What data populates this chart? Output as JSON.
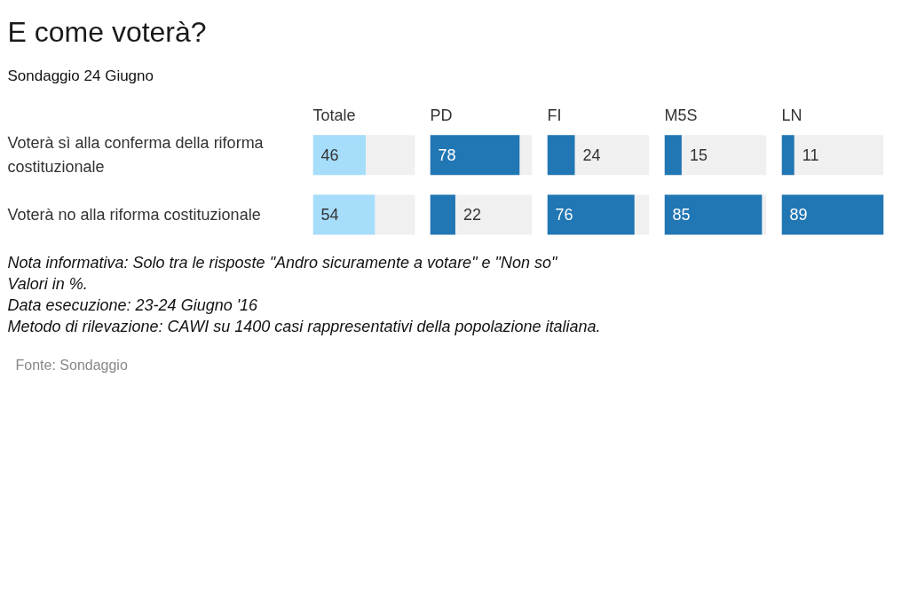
{
  "chart_data": [
    {
      "type": "other",
      "title": "E come voterà?",
      "subtitle": "Sondaggio 24 Giugno",
      "annotations": [
        "Nota informativa: Solo tra le risposte \"Andro sicuramente a votare\" e \"Non so\"",
        "Valori in %.",
        "Data esecuzione: 23-24 Giugno '16",
        "Metodo di rilevazione: CAWI su 1400 casi rappresentativi della popolazione italiana.",
        "Fonte: Sondaggio"
      ]
    },
    {
      "type": "bar",
      "orientation": "horizontal",
      "title": "Totale",
      "categories": [
        "Voterà sì alla conferma della riforma costituzionale",
        "Voterà no alla riforma costituzionale"
      ],
      "values": [
        46,
        54
      ],
      "color": "#a5ddfb",
      "xlim": [
        0,
        89
      ],
      "data_labels": true,
      "tick_labels": "y"
    },
    {
      "type": "bar",
      "orientation": "horizontal",
      "title": "PD",
      "categories": [
        "Voterà sì alla conferma della riforma costituzionale",
        "Voterà no alla riforma costituzionale"
      ],
      "values": [
        78,
        22
      ],
      "color": "#2176b4",
      "xlim": [
        0,
        89
      ],
      "data_labels": true,
      "tick_labels": false
    },
    {
      "type": "bar",
      "orientation": "horizontal",
      "title": "FI",
      "categories": [
        "Voterà sì alla conferma della riforma costituzionale",
        "Voterà no alla riforma costituzionale"
      ],
      "values": [
        24,
        76
      ],
      "color": "#2176b4",
      "xlim": [
        0,
        89
      ],
      "data_labels": true,
      "tick_labels": false
    },
    {
      "type": "bar",
      "orientation": "horizontal",
      "title": "M5S",
      "categories": [
        "Voterà sì alla conferma della riforma costituzionale",
        "Voterà no alla riforma costituzionale"
      ],
      "values": [
        15,
        85
      ],
      "color": "#2176b4",
      "xlim": [
        0,
        89
      ],
      "data_labels": true,
      "tick_labels": false
    },
    {
      "type": "bar",
      "orientation": "horizontal",
      "title": "LN",
      "categories": [
        "Voterà sì alla conferma della riforma costituzionale",
        "Voterà no alla riforma costituzionale"
      ],
      "values": [
        11,
        89
      ],
      "color": "#2176b4",
      "xlim": [
        0,
        89
      ],
      "data_labels": true,
      "tick_labels": false
    }
  ]
}
